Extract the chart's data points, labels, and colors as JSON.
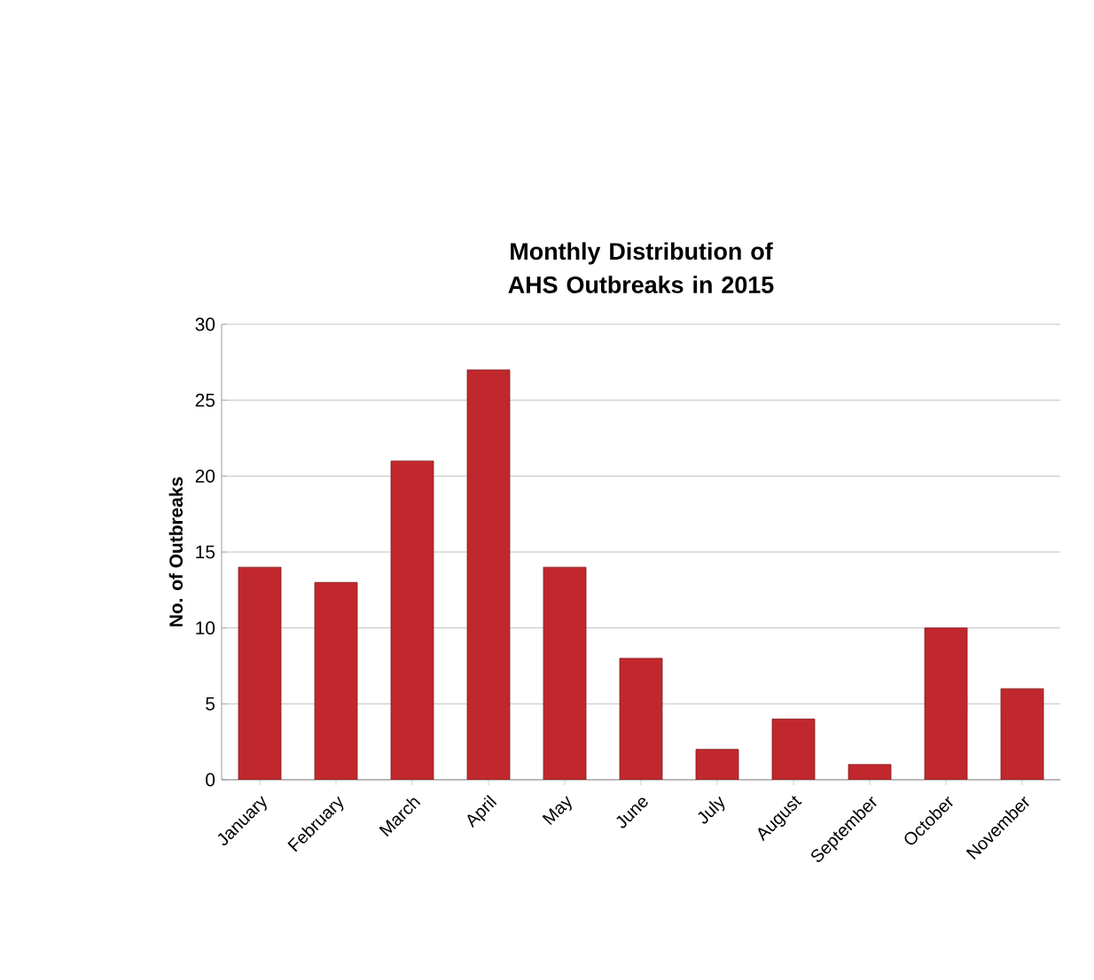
{
  "chart_data": {
    "type": "bar",
    "title": "Monthly Distribution of AHS Outbreaks in 2015",
    "ylabel": "No. of Outbreaks",
    "categories": [
      "January",
      "February",
      "March",
      "April",
      "May",
      "June",
      "July",
      "August",
      "September",
      "October",
      "November"
    ],
    "values": [
      14,
      13,
      21,
      27,
      14,
      8,
      2,
      4,
      1,
      10,
      6
    ],
    "color": "#c0282d",
    "ylim": [
      0,
      30
    ],
    "yticks": [
      0,
      5,
      10,
      15,
      20,
      25,
      30
    ],
    "grid": "y"
  }
}
